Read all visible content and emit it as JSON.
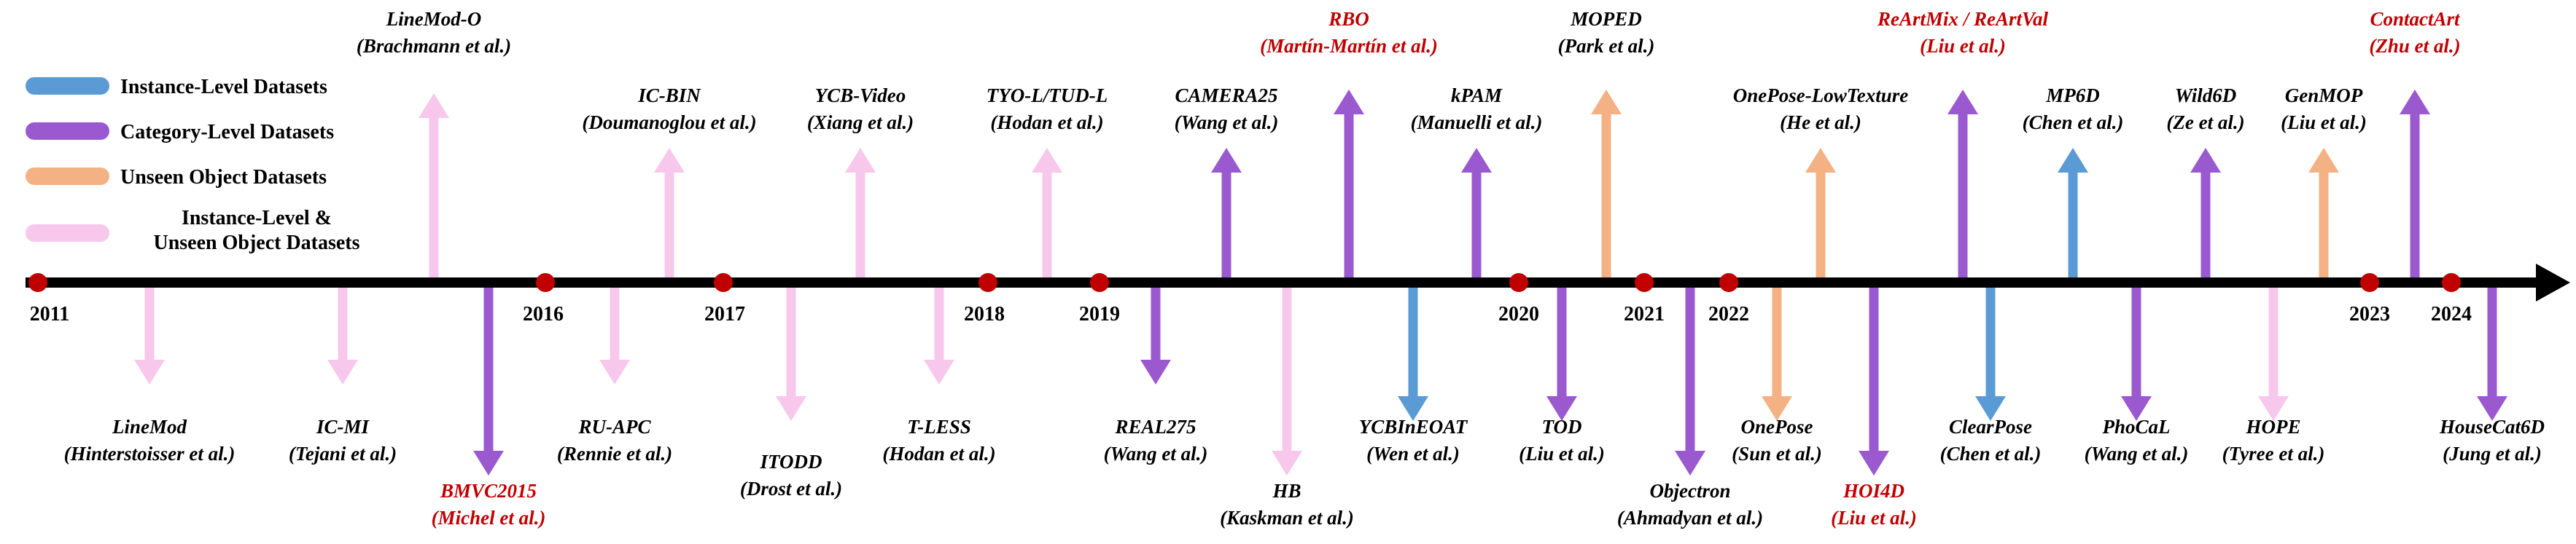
{
  "colors": {
    "instance": "#5b9bd5",
    "category": "#9b59d0",
    "unseen": "#f4b183",
    "instance_unseen": "#f8c8ec",
    "red_label": "#c00000",
    "text": "#000000",
    "timeline": "#000000",
    "year_dot": "#c00000"
  },
  "legend": [
    {
      "type": "instance",
      "label": "Instance-Level Datasets"
    },
    {
      "type": "category",
      "label": "Category-Level Datasets"
    },
    {
      "type": "unseen",
      "label": "Unseen Object Datasets"
    },
    {
      "type": "instance_unseen",
      "label": "Instance-Level &",
      "label2": "Unseen Object Datasets"
    }
  ],
  "years": [
    "2011",
    "2016",
    "2017",
    "2018",
    "2019",
    "2020",
    "2021",
    "2022",
    "2023",
    "2024"
  ],
  "datasets": [
    {
      "name": "LineMod",
      "authors": "(Hinterstoisser et al.)",
      "type": "instance_unseen",
      "dir": "down",
      "red": false
    },
    {
      "name": "IC-MI",
      "authors": "(Tejani et al.)",
      "type": "instance_unseen",
      "dir": "down",
      "red": false
    },
    {
      "name": "LineMod-O",
      "authors": "(Brachmann et al.)",
      "type": "instance_unseen",
      "dir": "up",
      "red": false
    },
    {
      "name": "BMVC2015",
      "authors": "(Michel et al.)",
      "type": "category",
      "dir": "down",
      "red": true
    },
    {
      "name": "RU-APC",
      "authors": "(Rennie et al.)",
      "type": "instance_unseen",
      "dir": "down",
      "red": false
    },
    {
      "name": "IC-BIN",
      "authors": "(Doumanoglou et al.)",
      "type": "instance_unseen",
      "dir": "up",
      "red": false
    },
    {
      "name": "ITODD",
      "authors": "(Drost et al.)",
      "type": "instance_unseen",
      "dir": "down",
      "red": false
    },
    {
      "name": "YCB-Video",
      "authors": "(Xiang et al.)",
      "type": "instance_unseen",
      "dir": "up",
      "red": false
    },
    {
      "name": "T-LESS",
      "authors": "(Hodan et al.)",
      "type": "instance_unseen",
      "dir": "down",
      "red": false
    },
    {
      "name": "TYO-L/TUD-L",
      "authors": "(Hodan et al.)",
      "type": "instance_unseen",
      "dir": "up",
      "red": false
    },
    {
      "name": "REAL275",
      "authors": "(Wang et al.)",
      "type": "category",
      "dir": "down",
      "red": false
    },
    {
      "name": "CAMERA25",
      "authors": "(Wang et al.)",
      "type": "category",
      "dir": "up",
      "red": false
    },
    {
      "name": "HB",
      "authors": "(Kaskman et al.)",
      "type": "instance_unseen",
      "dir": "down",
      "red": false
    },
    {
      "name": "RBO",
      "authors": "(Martín-Martín et al.)",
      "type": "category",
      "dir": "up",
      "red": true
    },
    {
      "name": "YCBInEOAT",
      "authors": "(Wen et al.)",
      "type": "instance",
      "dir": "down",
      "red": false
    },
    {
      "name": "kPAM",
      "authors": "(Manuelli et al.)",
      "type": "category",
      "dir": "up",
      "red": false
    },
    {
      "name": "TOD",
      "authors": "(Liu et al.)",
      "type": "category",
      "dir": "down",
      "red": false
    },
    {
      "name": "MOPED",
      "authors": "(Park et al.)",
      "type": "unseen",
      "dir": "up",
      "red": false
    },
    {
      "name": "Objectron",
      "authors": "(Ahmadyan et al.)",
      "type": "category",
      "dir": "down",
      "red": false
    },
    {
      "name": "OnePose",
      "authors": "(Sun et al.)",
      "type": "unseen",
      "dir": "down",
      "red": false
    },
    {
      "name": "OnePose-LowTexture",
      "authors": "(He et al.)",
      "type": "unseen",
      "dir": "up",
      "red": false
    },
    {
      "name": "HOI4D",
      "authors": "(Liu et al.)",
      "type": "category",
      "dir": "down",
      "red": true
    },
    {
      "name": "ReArtMix / ReArtVal",
      "authors": "(Liu et al.)",
      "type": "category",
      "dir": "up",
      "red": true
    },
    {
      "name": "ClearPose",
      "authors": "(Chen et al.)",
      "type": "instance",
      "dir": "down",
      "red": false
    },
    {
      "name": "MP6D",
      "authors": "(Chen et al.)",
      "type": "instance",
      "dir": "up",
      "red": false
    },
    {
      "name": "PhoCaL",
      "authors": "(Wang et al.)",
      "type": "category",
      "dir": "down",
      "red": false
    },
    {
      "name": "Wild6D",
      "authors": "(Ze et al.)",
      "type": "category",
      "dir": "up",
      "red": false
    },
    {
      "name": "HOPE",
      "authors": "(Tyree et al.)",
      "type": "instance_unseen",
      "dir": "down",
      "red": false
    },
    {
      "name": "GenMOP",
      "authors": "(Liu et al.)",
      "type": "unseen",
      "dir": "up",
      "red": false
    },
    {
      "name": "ContactArt",
      "authors": "(Zhu et al.)",
      "type": "category",
      "dir": "up",
      "red": true
    },
    {
      "name": "HouseCat6D",
      "authors": "(Jung et al.)",
      "type": "category",
      "dir": "down",
      "red": false
    }
  ]
}
